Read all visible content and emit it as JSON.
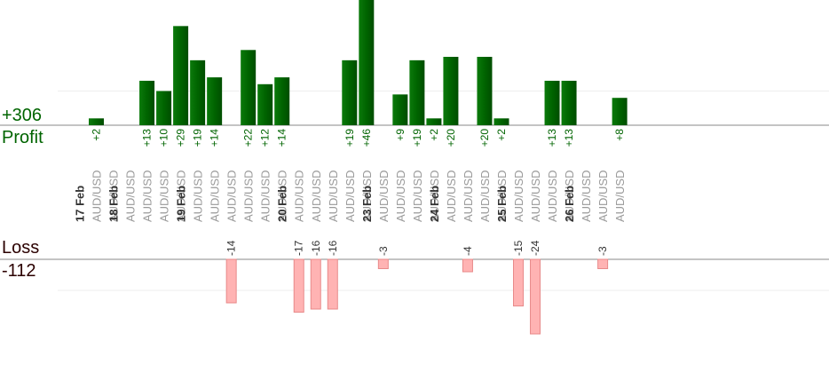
{
  "summary": {
    "profit_total": "+306",
    "profit_label": "Profit",
    "loss_label": "Loss",
    "loss_total": "-112"
  },
  "colors": {
    "profit": "#006400",
    "loss": "#ffb3b3",
    "loss_border": "#e88a8a",
    "baseline": "#888888",
    "grid": "#eeeeee"
  },
  "chart_data": {
    "type": "bar",
    "title": "",
    "xlabel": "",
    "ylabel": "",
    "trades": [
      {
        "date": "17 Feb",
        "pair": "AUD/USD",
        "value": 2
      },
      {
        "date": "17 Feb",
        "pair": "AUD/USD",
        "value": null
      },
      {
        "date": "18 Feb",
        "pair": "AUD/USD",
        "value": null
      },
      {
        "date": "18 Feb",
        "pair": "AUD/USD",
        "value": 13
      },
      {
        "date": "18 Feb",
        "pair": "AUD/USD",
        "value": 10
      },
      {
        "date": "18 Feb",
        "pair": "AUD/USD",
        "value": 29
      },
      {
        "date": "19 Feb",
        "pair": "AUD/USD",
        "value": 19
      },
      {
        "date": "19 Feb",
        "pair": "AUD/USD",
        "value": 14
      },
      {
        "date": "19 Feb",
        "pair": "AUD/USD",
        "value": -14
      },
      {
        "date": "19 Feb",
        "pair": "AUD/USD",
        "value": 22
      },
      {
        "date": "19 Feb",
        "pair": "AUD/USD",
        "value": 12
      },
      {
        "date": "19 Feb",
        "pair": "AUD/USD",
        "value": 14
      },
      {
        "date": "20 Feb",
        "pair": "AUD/USD",
        "value": -17
      },
      {
        "date": "20 Feb",
        "pair": "AUD/USD",
        "value": -16
      },
      {
        "date": "20 Feb",
        "pair": "AUD/USD",
        "value": -16
      },
      {
        "date": "20 Feb",
        "pair": "AUD/USD",
        "value": 19
      },
      {
        "date": "20 Feb",
        "pair": "AUD/USD",
        "value": 46
      },
      {
        "date": "23 Feb",
        "pair": "AUD/USD",
        "value": -3
      },
      {
        "date": "23 Feb",
        "pair": "AUD/USD",
        "value": 9
      },
      {
        "date": "23 Feb",
        "pair": "AUD/USD",
        "value": 19
      },
      {
        "date": "23 Feb",
        "pair": "AUD/USD",
        "value": 2
      },
      {
        "date": "24 Feb",
        "pair": "AUD/USD",
        "value": 20
      },
      {
        "date": "24 Feb",
        "pair": "AUD/USD",
        "value": -4
      },
      {
        "date": "24 Feb",
        "pair": "AUD/USD",
        "value": 20
      },
      {
        "date": "24 Feb",
        "pair": "AUD/USD",
        "value": 2
      },
      {
        "date": "25 Feb",
        "pair": "AUD/USD",
        "value": -15
      },
      {
        "date": "25 Feb",
        "pair": "AUD/USD",
        "value": -24
      },
      {
        "date": "25 Feb",
        "pair": "AUD/USD",
        "value": 13
      },
      {
        "date": "25 Feb",
        "pair": "AUD/USD",
        "value": 13
      },
      {
        "date": "26 Feb",
        "pair": "AUD/USD",
        "value": null
      },
      {
        "date": "26 Feb",
        "pair": "AUD/USD",
        "value": -3
      },
      {
        "date": "26 Feb",
        "pair": "AUD/USD",
        "value": 8
      }
    ],
    "date_groups": [
      {
        "label": "17 Feb",
        "first_index": 0
      },
      {
        "label": "18 Feb",
        "first_index": 2
      },
      {
        "label": "19 Feb",
        "first_index": 6
      },
      {
        "label": "20 Feb",
        "first_index": 12
      },
      {
        "label": "23 Feb",
        "first_index": 17
      },
      {
        "label": "24 Feb",
        "first_index": 21
      },
      {
        "label": "25 Feb",
        "first_index": 25
      },
      {
        "label": "26 Feb",
        "first_index": 29
      }
    ],
    "ylim_profit": [
      0,
      20
    ],
    "ylim_loss": [
      -20,
      0
    ],
    "grid": true,
    "legend": "none"
  }
}
